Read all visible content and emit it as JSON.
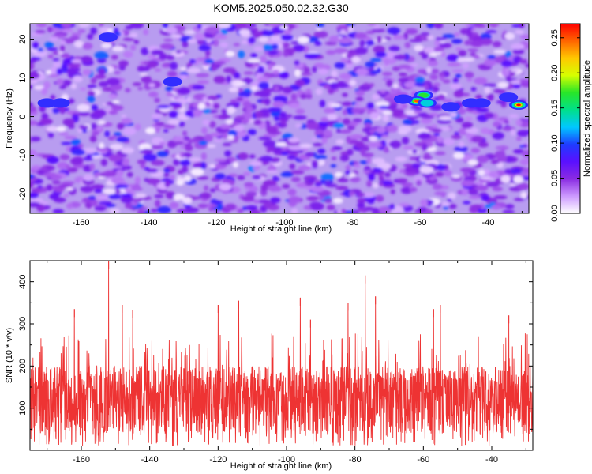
{
  "title": "KOM5.2025.050.02.32.G30",
  "chart_data": [
    {
      "type": "heatmap",
      "title": "KOM5.2025.050.02.32.G30",
      "xlabel": "Height of straight line (km)",
      "ylabel": "Frequency (Hz)",
      "xlim": [
        -175,
        -28
      ],
      "ylim": [
        -25,
        24
      ],
      "x_ticks": [
        -160,
        -140,
        -120,
        -100,
        -80,
        -60,
        -40
      ],
      "y_ticks": [
        -20,
        -10,
        0,
        10,
        20
      ],
      "colorbar": {
        "label": "Normalized spectral amplitude",
        "range": [
          0,
          0.27
        ],
        "ticks": [
          0.0,
          0.05,
          0.1,
          0.15,
          0.2,
          0.25
        ],
        "tick_labels": [
          "0.00",
          "0.05",
          "0.10",
          "0.15",
          "0.20",
          "0.25"
        ],
        "colors": [
          "#ffffff",
          "#cc99ff",
          "#8a2be2",
          "#5a10ff",
          "#1e3cff",
          "#00c8ff",
          "#00e08a",
          "#28e628",
          "#d6ff00",
          "#ffc800",
          "#ff6400",
          "#ff0000"
        ]
      },
      "hotspots": [
        {
          "x": -59,
          "y": 5.5,
          "value": 0.18
        },
        {
          "x": -61,
          "y": 4,
          "value": 0.25
        },
        {
          "x": -58,
          "y": 3.5,
          "value": 0.16
        },
        {
          "x": -31,
          "y": 3,
          "value": 0.27
        },
        {
          "x": -34,
          "y": 5,
          "value": 0.12
        },
        {
          "x": -45,
          "y": 3.5,
          "value": 0.1
        },
        {
          "x": -42,
          "y": 3.5,
          "value": 0.09
        },
        {
          "x": -51,
          "y": 2.5,
          "value": 0.09
        },
        {
          "x": -65,
          "y": 4.5,
          "value": 0.09
        },
        {
          "x": -170,
          "y": 3.5,
          "value": 0.1
        },
        {
          "x": -166,
          "y": 3.5,
          "value": 0.09
        },
        {
          "x": -152,
          "y": 20.5,
          "value": 0.09
        },
        {
          "x": -133,
          "y": 9,
          "value": 0.09
        }
      ],
      "grid": false
    },
    {
      "type": "line",
      "xlabel": "Height of straight line (km)",
      "ylabel": "SNR (10 * v/v)",
      "xlim": [
        -175,
        -28
      ],
      "ylim": [
        0,
        450
      ],
      "x_ticks": [
        -160,
        -140,
        -120,
        -100,
        -80,
        -60,
        -40
      ],
      "y_ticks": [
        100,
        200,
        300,
        400
      ],
      "color": "#ee3333",
      "peaks": [
        {
          "x": -152,
          "y": 450
        },
        {
          "x": -77,
          "y": 415
        },
        {
          "x": -74,
          "y": 365
        },
        {
          "x": -96,
          "y": 362
        },
        {
          "x": -114,
          "y": 355
        },
        {
          "x": -148,
          "y": 345
        },
        {
          "x": -162,
          "y": 335
        },
        {
          "x": -145,
          "y": 332
        },
        {
          "x": -120,
          "y": 345
        },
        {
          "x": -82,
          "y": 350
        },
        {
          "x": -55,
          "y": 345
        },
        {
          "x": -57,
          "y": 335
        },
        {
          "x": -35,
          "y": 320
        },
        {
          "x": -93,
          "y": 310
        }
      ],
      "grid": false
    }
  ]
}
